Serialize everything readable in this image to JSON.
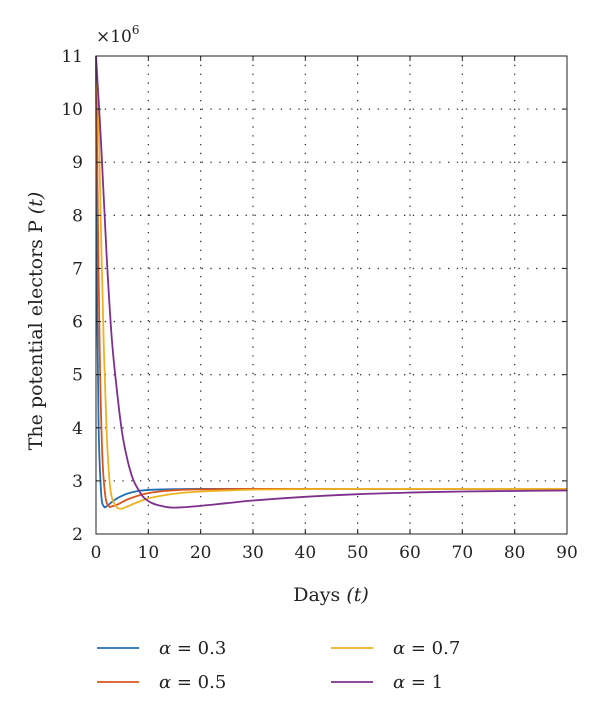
{
  "chart_data": {
    "type": "line",
    "title": "",
    "xlabel": "Days",
    "xlabel_var": "(t)",
    "ylabel": "The potential electors P",
    "ylabel_var": "(t)",
    "y_multiplier_base": "×10",
    "y_multiplier_exp": "6",
    "xlim": [
      0,
      90
    ],
    "ylim": [
      2,
      11
    ],
    "xticks": [
      0,
      10,
      20,
      30,
      40,
      50,
      60,
      70,
      80,
      90
    ],
    "yticks": [
      2,
      3,
      4,
      5,
      6,
      7,
      8,
      9,
      10,
      11
    ],
    "grid": true,
    "grid_style": "dotted",
    "legend_placement": "bottom",
    "series": [
      {
        "name": "α = 0.3",
        "greek": "α",
        "eq": " = 0.3",
        "color": "#1f6fb5",
        "x": [
          0,
          0.2,
          0.5,
          1,
          1.5,
          2,
          3,
          4,
          5,
          6,
          8,
          10,
          13,
          16,
          20,
          30,
          40,
          60,
          90
        ],
        "y": [
          11,
          6.5,
          4.0,
          2.75,
          2.52,
          2.52,
          2.6,
          2.67,
          2.72,
          2.76,
          2.81,
          2.83,
          2.84,
          2.845,
          2.85,
          2.85,
          2.85,
          2.85,
          2.85
        ]
      },
      {
        "name": "α = 0.5",
        "greek": "α",
        "eq": " = 0.5",
        "color": "#d9541e",
        "x": [
          0,
          0.3,
          0.7,
          1.2,
          1.8,
          2.5,
          3,
          4,
          5,
          6,
          8,
          10,
          13,
          16,
          20,
          25,
          30,
          40,
          60,
          90
        ],
        "y": [
          11,
          8.5,
          5.5,
          3.5,
          2.7,
          2.52,
          2.52,
          2.55,
          2.6,
          2.65,
          2.72,
          2.77,
          2.81,
          2.83,
          2.84,
          2.845,
          2.85,
          2.85,
          2.85,
          2.85
        ]
      },
      {
        "name": "α = 0.7",
        "greek": "α",
        "eq": " = 0.7",
        "color": "#eeb121",
        "x": [
          0,
          0.5,
          1,
          1.5,
          2,
          2.5,
          3,
          4,
          5,
          6,
          8,
          10,
          13,
          16,
          20,
          25,
          30,
          40,
          50,
          70,
          90
        ],
        "y": [
          11,
          9.8,
          7.5,
          5.5,
          4.0,
          3.1,
          2.7,
          2.5,
          2.48,
          2.52,
          2.6,
          2.67,
          2.73,
          2.77,
          2.8,
          2.82,
          2.835,
          2.845,
          2.85,
          2.85,
          2.85
        ]
      },
      {
        "name": "α = 1",
        "greek": "α",
        "eq": " = 1",
        "color": "#7e2f8e",
        "x": [
          0,
          1,
          2,
          3,
          4,
          5,
          6,
          7,
          8,
          9,
          10,
          11,
          12,
          14,
          16,
          20,
          25,
          30,
          40,
          50,
          60,
          70,
          80,
          90
        ],
        "y": [
          11,
          9.3,
          7.3,
          5.7,
          4.7,
          3.9,
          3.4,
          3.05,
          2.85,
          2.7,
          2.62,
          2.57,
          2.54,
          2.5,
          2.5,
          2.53,
          2.58,
          2.63,
          2.7,
          2.75,
          2.78,
          2.8,
          2.81,
          2.82
        ]
      }
    ]
  }
}
